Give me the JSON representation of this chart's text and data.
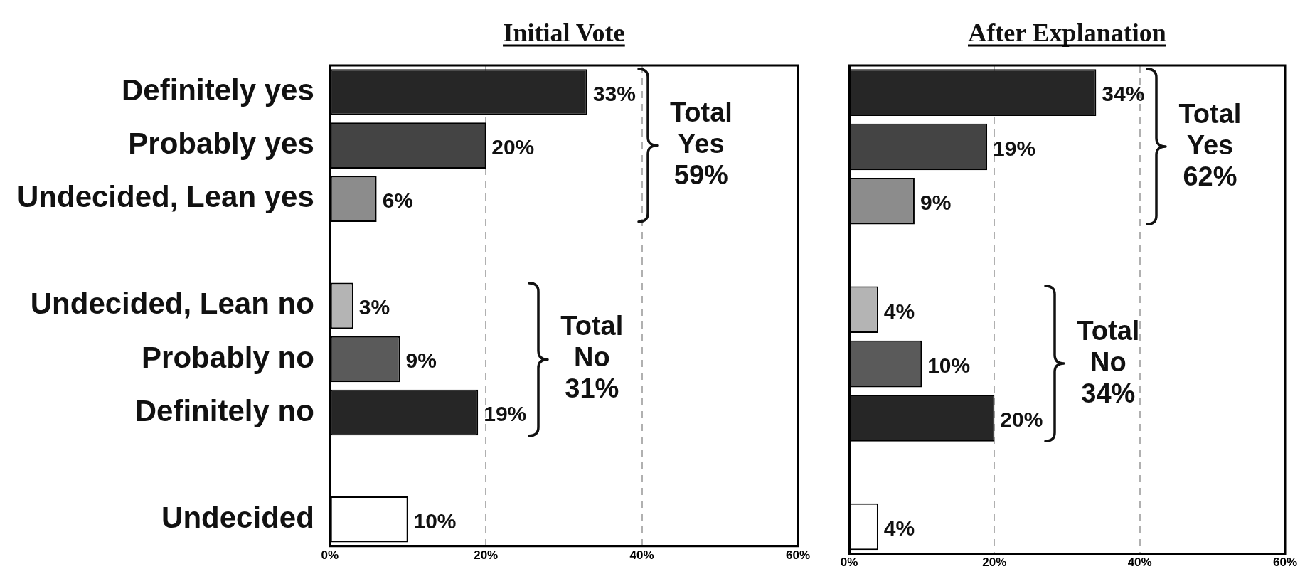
{
  "chart_data": [
    {
      "type": "bar",
      "orientation": "horizontal",
      "title": "Initial Vote",
      "categories": [
        "Definitely yes",
        "Probably yes",
        "Undecided, Lean yes",
        null,
        "Undecided, Lean no",
        "Probably no",
        "Definitely no",
        null,
        "Undecided"
      ],
      "values": [
        33,
        20,
        6,
        null,
        3,
        9,
        19,
        null,
        10
      ],
      "colors": [
        "#262626",
        "#444444",
        "#8c8c8c",
        null,
        "#b4b4b4",
        "#5a5a5a",
        "#262626",
        null,
        "#ffffff"
      ],
      "value_labels": [
        "33%",
        "20%",
        "6%",
        null,
        "3%",
        "9%",
        "19%",
        null,
        "10%"
      ],
      "xlim": [
        0,
        60
      ],
      "xticks": [
        {
          "value": 0,
          "label": "0%"
        },
        {
          "value": 20,
          "label": "20%"
        },
        {
          "value": 40,
          "label": "40%"
        },
        {
          "value": 60,
          "label": "60%"
        }
      ],
      "grid": "x",
      "annotations": [
        "Total Yes 59%",
        "Total No 31%"
      ]
    },
    {
      "type": "bar",
      "orientation": "horizontal",
      "title": "After Explanation",
      "categories": [
        null,
        null,
        null,
        null,
        null,
        null,
        null,
        null,
        null
      ],
      "values": [
        34,
        19,
        9,
        null,
        4,
        10,
        20,
        null,
        4
      ],
      "colors": [
        "#262626",
        "#444444",
        "#8c8c8c",
        null,
        "#b4b4b4",
        "#5a5a5a",
        "#262626",
        null,
        "#ffffff"
      ],
      "value_labels": [
        "34%",
        "19%",
        "9%",
        null,
        "4%",
        "10%",
        "20%",
        null,
        "4%"
      ],
      "xlim": [
        0,
        60
      ],
      "xticks": [
        {
          "value": 0,
          "label": "0%"
        },
        {
          "value": 20,
          "label": "20%"
        },
        {
          "value": 40,
          "label": "40%"
        },
        {
          "value": 60,
          "label": "60%"
        }
      ],
      "grid": "x",
      "tick_labels": "x",
      "annotations": [
        "Total Yes 62%",
        "Total No 34%"
      ]
    }
  ]
}
